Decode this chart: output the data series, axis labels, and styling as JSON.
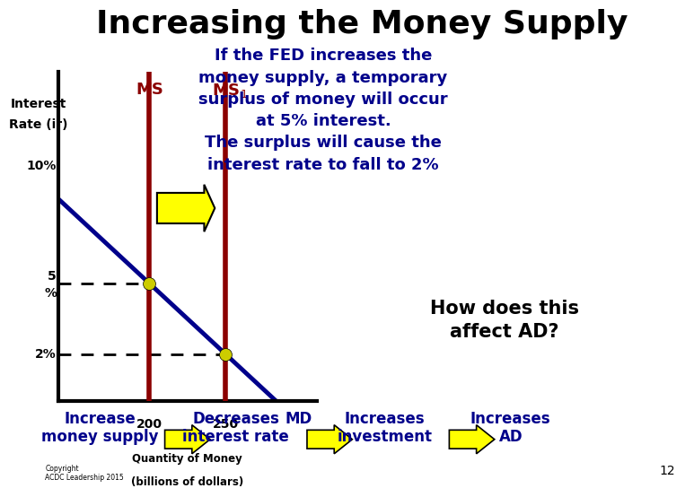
{
  "title": "Increasing the Money Supply",
  "title_fontsize": 26,
  "title_fontweight": "bold",
  "bg_color": "#ffffff",
  "ylabel": "Interest\nRate (ir)",
  "xlabel_line1": "Quantity of Money",
  "xlabel_line2": "(billions of dollars)",
  "ms_x": 200,
  "ms1_x": 250,
  "md_slope2": -0.06,
  "md_intercept2": 17.0,
  "ir_5pct": 5,
  "ir_2pct": 2,
  "ir_10pct": 10,
  "x_200": 200,
  "x_250": 250,
  "xlim": [
    140,
    310
  ],
  "ylim": [
    0,
    14
  ],
  "ms_color": "#8b0000",
  "md_color": "#00008b",
  "dot_color": "#cccc00",
  "text_blue": "#00008b",
  "text_black": "#000000",
  "arrow_color": "#ffff00",
  "right_text": "If the FED increases the\nmoney supply, a temporary\nsurplus of money will occur\nat 5% interest.\nThe surplus will cause the\ninterest rate to fall to 2%",
  "how_text": "How does this\naffect AD?",
  "bottom_labels": [
    "Increase\nmoney supply",
    "Decreases\ninterest rate",
    "Increases\ninvestment",
    "Increases\nAD"
  ],
  "copyright": "Copyright\nACDC Leadership 2015",
  "page_num": "12"
}
